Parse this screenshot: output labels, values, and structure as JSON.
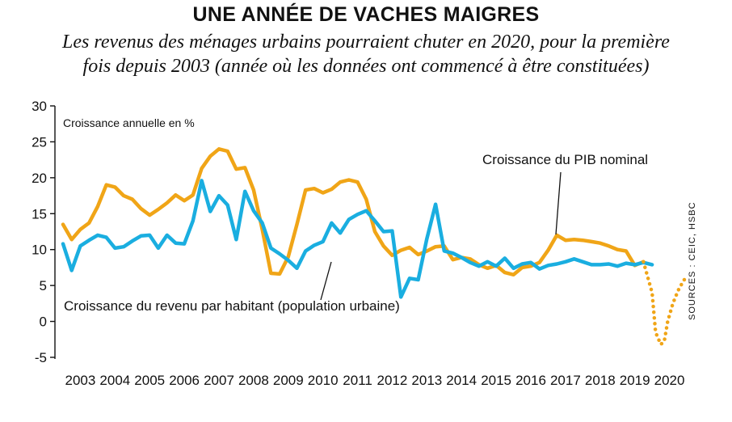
{
  "title": "UNE ANNÉE DE VACHES MAIGRES",
  "subtitle_line1": "Les revenus des ménages urbains pourraient chuter en 2020, pour la première",
  "subtitle_line2": "fois depuis 2003 (année où les données ont commencé à être constituées)",
  "source": "SOURCES : CEIC, HSBC",
  "colors": {
    "gdp": "#f0a517",
    "income": "#1aaee0"
  },
  "chart_data": {
    "type": "line",
    "title": "UNE ANNÉE DE VACHES MAIGRES",
    "ylabel": "Croissance annuelle en %",
    "ylim": [
      -5,
      30
    ],
    "yticks": [
      30,
      25,
      20,
      15,
      10,
      5,
      0,
      -5
    ],
    "xlim": [
      2003,
      2021
    ],
    "xticks": [
      "2003",
      "2004",
      "2005",
      "2006",
      "2007",
      "2008",
      "2009",
      "2010",
      "2011",
      "2012",
      "2013",
      "2014",
      "2015",
      "2016",
      "2017",
      "2018",
      "2019",
      "2020"
    ],
    "grid": false,
    "annotations": {
      "gdp": "Croissance du PIB nominal",
      "income": "Croissance du revenu par habitant (population urbaine)"
    },
    "series": [
      {
        "name": "Croissance du PIB nominal",
        "color": "#f0a517",
        "x": [
          2003.0,
          2003.25,
          2003.5,
          2003.75,
          2004.0,
          2004.25,
          2004.5,
          2004.75,
          2005.0,
          2005.25,
          2005.5,
          2005.75,
          2006.0,
          2006.25,
          2006.5,
          2006.75,
          2007.0,
          2007.25,
          2007.5,
          2007.75,
          2008.0,
          2008.25,
          2008.5,
          2008.75,
          2009.0,
          2009.25,
          2009.5,
          2009.75,
          2010.0,
          2010.25,
          2010.5,
          2010.75,
          2011.0,
          2011.25,
          2011.5,
          2011.75,
          2012.0,
          2012.25,
          2012.5,
          2012.75,
          2013.0,
          2013.25,
          2013.5,
          2013.75,
          2014.0,
          2014.25,
          2014.5,
          2014.75,
          2015.0,
          2015.25,
          2015.5,
          2015.75,
          2016.0,
          2016.25,
          2016.5,
          2016.75,
          2017.0,
          2017.25,
          2017.5,
          2017.75,
          2018.0,
          2018.25,
          2018.5,
          2018.75,
          2019.0,
          2019.25,
          2019.5,
          2019.75
        ],
        "values": [
          13.5,
          11.4,
          12.8,
          13.7,
          16.0,
          19.0,
          18.7,
          17.5,
          17.0,
          15.7,
          14.8,
          15.6,
          16.5,
          17.6,
          16.8,
          17.6,
          21.3,
          23.0,
          24.0,
          23.7,
          21.2,
          21.4,
          18.3,
          12.8,
          6.7,
          6.6,
          9.0,
          13.5,
          18.3,
          18.5,
          17.9,
          18.4,
          19.4,
          19.7,
          19.4,
          17.0,
          12.5,
          10.5,
          9.2,
          9.9,
          10.3,
          9.3,
          9.8,
          10.4,
          10.5,
          8.6,
          8.9,
          8.7,
          7.9,
          7.4,
          7.8,
          6.8,
          6.5,
          7.5,
          7.7,
          8.2,
          9.9,
          12.0,
          11.3,
          11.4,
          11.3,
          11.1,
          10.9,
          10.5,
          10.0,
          9.8,
          7.8,
          8.3
        ]
      },
      {
        "name": "Croissance du revenu par habitant (population urbaine)",
        "color": "#1aaee0",
        "x": [
          2003.0,
          2003.25,
          2003.5,
          2003.75,
          2004.0,
          2004.25,
          2004.5,
          2004.75,
          2005.0,
          2005.25,
          2005.5,
          2005.75,
          2006.0,
          2006.25,
          2006.5,
          2006.75,
          2007.0,
          2007.25,
          2007.5,
          2007.75,
          2008.0,
          2008.25,
          2008.5,
          2008.75,
          2009.0,
          2009.25,
          2009.5,
          2009.75,
          2010.0,
          2010.25,
          2010.5,
          2010.75,
          2011.0,
          2011.25,
          2011.5,
          2011.75,
          2012.0,
          2012.25,
          2012.5,
          2012.75,
          2013.0,
          2013.25,
          2013.5,
          2013.75,
          2014.0,
          2014.25,
          2014.5,
          2014.75,
          2015.0,
          2015.25,
          2015.5,
          2015.75,
          2016.0,
          2016.25,
          2016.5,
          2016.75,
          2017.0,
          2017.25,
          2017.5,
          2017.75,
          2018.0,
          2018.25,
          2018.5,
          2018.75,
          2019.0,
          2019.25,
          2019.5,
          2019.75,
          2020.0
        ],
        "values": [
          10.8,
          7.1,
          10.5,
          11.3,
          12.0,
          11.7,
          10.2,
          10.4,
          11.2,
          11.9,
          12.0,
          10.2,
          12.0,
          10.9,
          10.8,
          14.0,
          19.6,
          15.3,
          17.5,
          16.2,
          11.4,
          18.1,
          15.4,
          13.7,
          10.2,
          9.4,
          8.5,
          7.4,
          9.8,
          10.6,
          11.1,
          13.7,
          12.3,
          14.2,
          14.9,
          15.4,
          14.0,
          12.5,
          12.6,
          3.4,
          6.0,
          5.8,
          11.5,
          16.3,
          9.8,
          9.5,
          8.9,
          8.2,
          7.7,
          8.3,
          7.7,
          8.8,
          7.4,
          8.0,
          8.2,
          7.3,
          7.8,
          8.0,
          8.3,
          8.7,
          8.3,
          7.9,
          7.9,
          8.0,
          7.7,
          8.1,
          7.9,
          8.2,
          7.9
        ]
      },
      {
        "name": "Croissance du PIB nominal (projection)",
        "color": "#f0a517",
        "style": "dotted",
        "x": [
          2019.75,
          2020.0,
          2020.1,
          2020.25,
          2020.35,
          2020.45,
          2020.6,
          2020.75,
          2020.9,
          2021.0
        ],
        "values": [
          8.3,
          4.0,
          -1.5,
          -3.2,
          -2.8,
          0.0,
          2.5,
          4.3,
          5.6,
          6.3
        ]
      }
    ]
  }
}
